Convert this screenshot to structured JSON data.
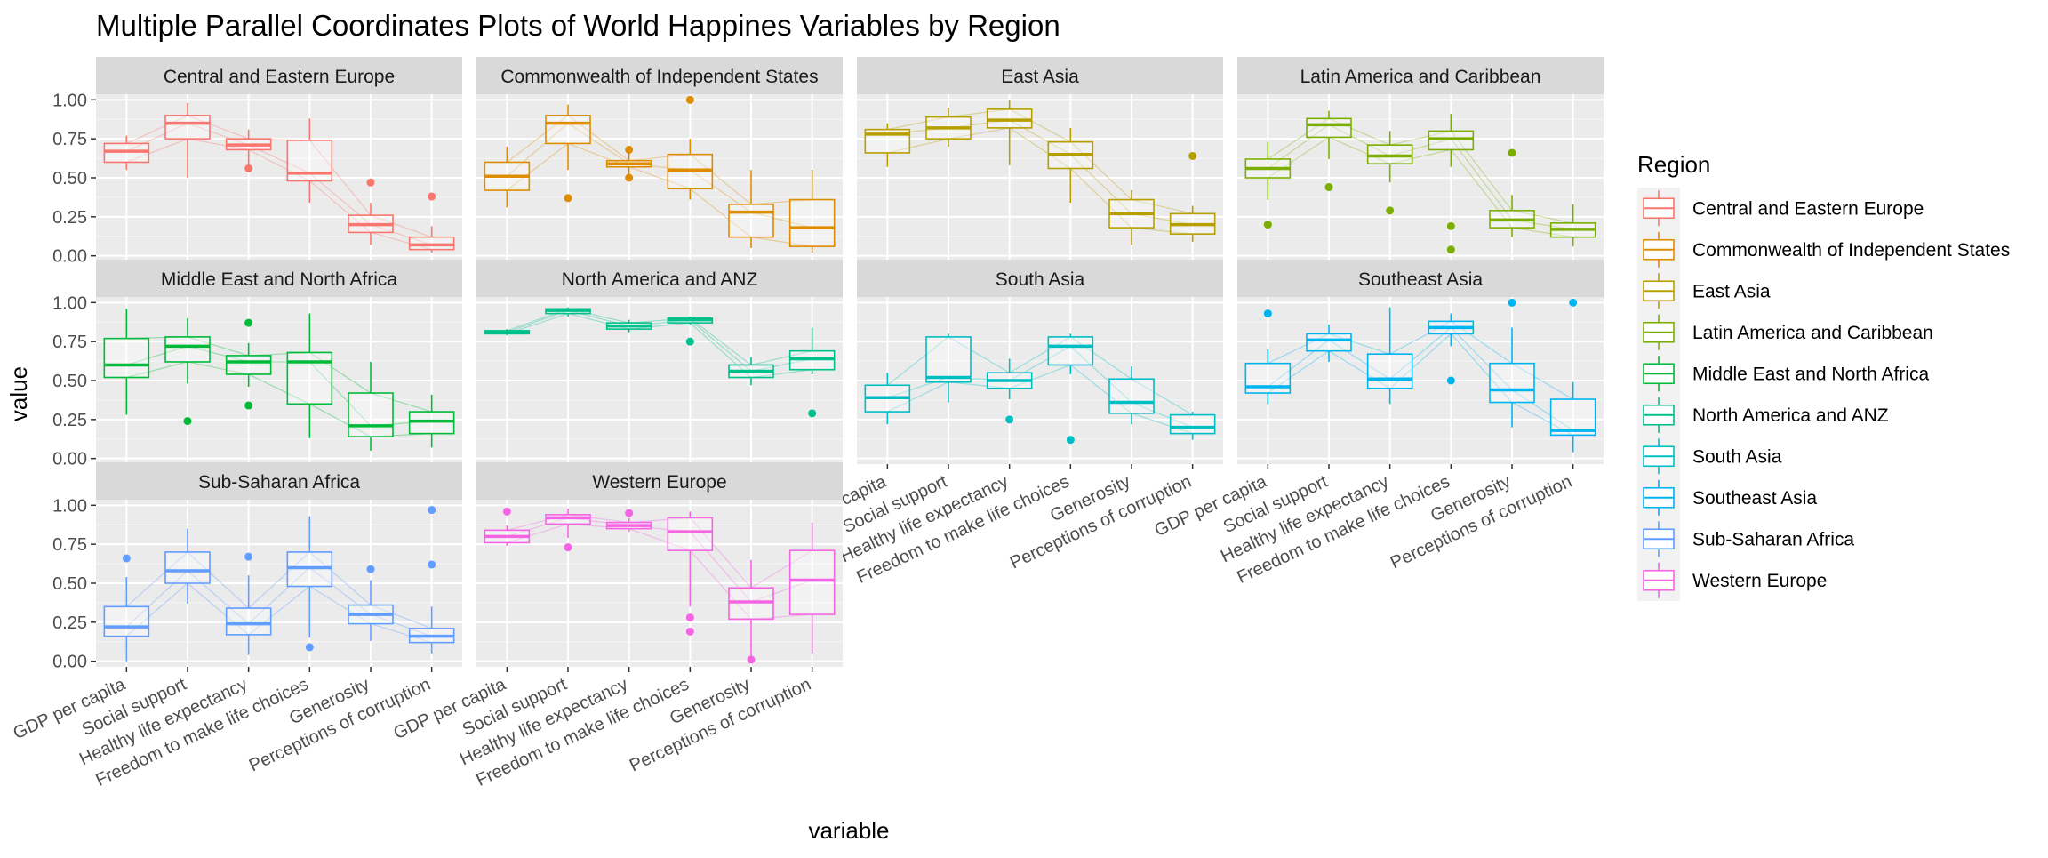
{
  "chart_data": {
    "type": "parallel_coordinates_boxplot",
    "title": "Multiple Parallel Coordinates Plots of World Happines Variables by Region",
    "xlabel": "variable",
    "ylabel": "value",
    "ylim": [
      0,
      1
    ],
    "yticks": [
      "0.00",
      "0.25",
      "0.50",
      "0.75",
      "1.00"
    ],
    "variables": [
      "GDP per capita",
      "Social support",
      "Healthy life expectancy",
      "Freedom to make life choices",
      "Generosity",
      "Perceptions of corruption"
    ],
    "legend_title": "Region",
    "legend_position": "right",
    "grid": true,
    "box_fields": [
      "lower_whisker",
      "q1",
      "median",
      "q3",
      "upper_whisker"
    ],
    "panels": [
      {
        "region": "Central and Eastern Europe",
        "color": "#F8766D",
        "boxes": [
          [
            0.55,
            0.6,
            0.67,
            0.72,
            0.77
          ],
          [
            0.5,
            0.75,
            0.85,
            0.9,
            0.98
          ],
          [
            0.58,
            0.68,
            0.71,
            0.75,
            0.81
          ],
          [
            0.34,
            0.48,
            0.53,
            0.74,
            0.88
          ],
          [
            0.07,
            0.15,
            0.2,
            0.26,
            0.34
          ],
          [
            0.02,
            0.04,
            0.07,
            0.12,
            0.19
          ]
        ],
        "outliers": [
          [
            2,
            0.56
          ],
          [
            4,
            0.47
          ],
          [
            5,
            0.38
          ]
        ]
      },
      {
        "region": "Commonwealth of Independent States",
        "color": "#DE8C00",
        "boxes": [
          [
            0.31,
            0.42,
            0.51,
            0.6,
            0.7
          ],
          [
            0.55,
            0.72,
            0.85,
            0.9,
            0.97
          ],
          [
            0.52,
            0.57,
            0.59,
            0.61,
            0.66
          ],
          [
            0.36,
            0.43,
            0.55,
            0.65,
            0.75
          ],
          [
            0.05,
            0.12,
            0.28,
            0.33,
            0.55
          ],
          [
            0.02,
            0.06,
            0.18,
            0.36,
            0.55
          ]
        ],
        "outliers": [
          [
            1,
            0.37
          ],
          [
            2,
            0.68
          ],
          [
            2,
            0.5
          ],
          [
            3,
            1.0
          ]
        ]
      },
      {
        "region": "East Asia",
        "color": "#B79F00",
        "boxes": [
          [
            0.57,
            0.66,
            0.78,
            0.81,
            0.85
          ],
          [
            0.7,
            0.75,
            0.82,
            0.89,
            0.95
          ],
          [
            0.58,
            0.82,
            0.87,
            0.94,
            1.0
          ],
          [
            0.34,
            0.56,
            0.65,
            0.73,
            0.82
          ],
          [
            0.07,
            0.18,
            0.27,
            0.36,
            0.42
          ],
          [
            0.09,
            0.14,
            0.2,
            0.27,
            0.32
          ]
        ],
        "outliers": [
          [
            5,
            0.64
          ]
        ]
      },
      {
        "region": "Latin America and Caribbean",
        "color": "#7CAE00",
        "boxes": [
          [
            0.36,
            0.5,
            0.56,
            0.62,
            0.73
          ],
          [
            0.62,
            0.76,
            0.84,
            0.88,
            0.93
          ],
          [
            0.47,
            0.59,
            0.64,
            0.71,
            0.8
          ],
          [
            0.57,
            0.68,
            0.75,
            0.8,
            0.91
          ],
          [
            0.12,
            0.18,
            0.23,
            0.29,
            0.39
          ],
          [
            0.06,
            0.12,
            0.17,
            0.21,
            0.33
          ]
        ],
        "outliers": [
          [
            0,
            0.2
          ],
          [
            1,
            0.44
          ],
          [
            2,
            0.29
          ],
          [
            3,
            0.19
          ],
          [
            3,
            0.04
          ],
          [
            4,
            0.66
          ]
        ]
      },
      {
        "region": "Middle East and North Africa",
        "color": "#00BA38",
        "boxes": [
          [
            0.28,
            0.52,
            0.6,
            0.77,
            0.96
          ],
          [
            0.48,
            0.62,
            0.72,
            0.78,
            0.9
          ],
          [
            0.46,
            0.54,
            0.62,
            0.66,
            0.74
          ],
          [
            0.13,
            0.35,
            0.62,
            0.68,
            0.93
          ],
          [
            0.05,
            0.14,
            0.21,
            0.42,
            0.62
          ],
          [
            0.07,
            0.16,
            0.24,
            0.3,
            0.41
          ]
        ],
        "outliers": [
          [
            1,
            0.24
          ],
          [
            2,
            0.87
          ],
          [
            2,
            0.34
          ]
        ]
      },
      {
        "region": "North America and ANZ",
        "color": "#00C08B",
        "boxes": [
          [
            0.79,
            0.8,
            0.81,
            0.82,
            0.83
          ],
          [
            0.91,
            0.93,
            0.95,
            0.96,
            0.97
          ],
          [
            0.81,
            0.83,
            0.85,
            0.87,
            0.89
          ],
          [
            0.86,
            0.87,
            0.89,
            0.9,
            0.91
          ],
          [
            0.47,
            0.52,
            0.56,
            0.6,
            0.65
          ],
          [
            0.54,
            0.57,
            0.64,
            0.69,
            0.84
          ]
        ],
        "outliers": [
          [
            3,
            0.75
          ],
          [
            5,
            0.29
          ]
        ]
      },
      {
        "region": "South Asia",
        "color": "#00BFC4",
        "boxes": [
          [
            0.22,
            0.3,
            0.39,
            0.47,
            0.55
          ],
          [
            0.36,
            0.49,
            0.52,
            0.78,
            0.8
          ],
          [
            0.38,
            0.45,
            0.5,
            0.55,
            0.64
          ],
          [
            0.54,
            0.6,
            0.72,
            0.78,
            0.8
          ],
          [
            0.22,
            0.29,
            0.36,
            0.51,
            0.59
          ],
          [
            0.12,
            0.16,
            0.2,
            0.28,
            0.3
          ]
        ],
        "outliers": [
          [
            2,
            0.25
          ],
          [
            3,
            0.12
          ]
        ]
      },
      {
        "region": "Southeast Asia",
        "color": "#00B4F0",
        "boxes": [
          [
            0.35,
            0.42,
            0.46,
            0.61,
            0.7
          ],
          [
            0.62,
            0.69,
            0.76,
            0.8,
            0.86
          ],
          [
            0.35,
            0.45,
            0.51,
            0.67,
            0.97
          ],
          [
            0.72,
            0.8,
            0.84,
            0.88,
            0.93
          ],
          [
            0.2,
            0.36,
            0.44,
            0.61,
            0.84
          ],
          [
            0.04,
            0.15,
            0.18,
            0.38,
            0.49
          ]
        ],
        "outliers": [
          [
            0,
            0.93
          ],
          [
            3,
            0.5
          ],
          [
            4,
            1.0
          ],
          [
            5,
            1.0
          ]
        ]
      },
      {
        "region": "Sub-Saharan Africa",
        "color": "#619CFF",
        "boxes": [
          [
            0.0,
            0.16,
            0.22,
            0.35,
            0.54
          ],
          [
            0.37,
            0.5,
            0.58,
            0.7,
            0.85
          ],
          [
            0.04,
            0.17,
            0.24,
            0.34,
            0.55
          ],
          [
            0.15,
            0.48,
            0.6,
            0.7,
            0.93
          ],
          [
            0.13,
            0.24,
            0.3,
            0.36,
            0.52
          ],
          [
            0.05,
            0.12,
            0.16,
            0.21,
            0.35
          ]
        ],
        "outliers": [
          [
            0,
            0.66
          ],
          [
            2,
            0.67
          ],
          [
            3,
            0.09
          ],
          [
            4,
            0.59
          ],
          [
            5,
            0.97
          ],
          [
            5,
            0.62
          ]
        ]
      },
      {
        "region": "Western Europe",
        "color": "#F564E3",
        "boxes": [
          [
            0.74,
            0.76,
            0.8,
            0.84,
            0.87
          ],
          [
            0.79,
            0.88,
            0.92,
            0.94,
            0.98
          ],
          [
            0.83,
            0.85,
            0.87,
            0.89,
            0.92
          ],
          [
            0.35,
            0.71,
            0.83,
            0.92,
            0.96
          ],
          [
            0.0,
            0.27,
            0.38,
            0.47,
            0.65
          ],
          [
            0.05,
            0.3,
            0.52,
            0.71,
            0.89
          ]
        ],
        "outliers": [
          [
            0,
            0.96
          ],
          [
            1,
            0.73
          ],
          [
            2,
            0.95
          ],
          [
            3,
            0.19
          ],
          [
            3,
            0.28
          ],
          [
            4,
            0.01
          ]
        ]
      }
    ],
    "legend": [
      {
        "label": "Central and Eastern Europe",
        "color": "#F8766D"
      },
      {
        "label": "Commonwealth of Independent States",
        "color": "#DE8C00"
      },
      {
        "label": "East Asia",
        "color": "#B79F00"
      },
      {
        "label": "Latin America and Caribbean",
        "color": "#7CAE00"
      },
      {
        "label": "Middle East and North Africa",
        "color": "#00BA38"
      },
      {
        "label": "North America and ANZ",
        "color": "#00C08B"
      },
      {
        "label": "South Asia",
        "color": "#00BFC4"
      },
      {
        "label": "Southeast Asia",
        "color": "#00B4F0"
      },
      {
        "label": "Sub-Saharan Africa",
        "color": "#619CFF"
      },
      {
        "label": "Western Europe",
        "color": "#F564E3"
      }
    ]
  }
}
